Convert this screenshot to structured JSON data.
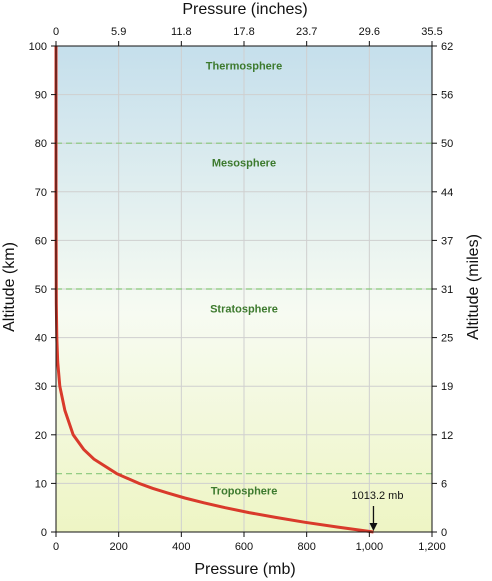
{
  "chart_data": {
    "type": "line",
    "xlabel": "Pressure (mb)",
    "x2label": "Pressure (inches)",
    "ylabel": "Altitude (km)",
    "y2label": "Altitude (miles)",
    "xlim": [
      0,
      1200
    ],
    "ylim": [
      0,
      100
    ],
    "x_ticks": [
      "0",
      "200",
      "400",
      "600",
      "800",
      "1,000",
      "1,200"
    ],
    "x2_ticks": [
      "0",
      "5.9",
      "11.8",
      "17.8",
      "23.7",
      "29.6",
      "35.5"
    ],
    "y_ticks": [
      "0",
      "10",
      "20",
      "30",
      "40",
      "50",
      "60",
      "70",
      "80",
      "90",
      "100"
    ],
    "y2_ticks": [
      "0",
      "6",
      "12",
      "19",
      "25",
      "31",
      "37",
      "44",
      "50",
      "56",
      "62"
    ],
    "grid": true,
    "layers": [
      {
        "name": "Troposphere",
        "label_altitude": 8.5,
        "top": 12
      },
      {
        "name": "Stratosphere",
        "label_altitude": 46,
        "top": 50
      },
      {
        "name": "Mesosphere",
        "label_altitude": 76,
        "top": 80
      },
      {
        "name": "Thermosphere",
        "label_altitude": 96
      }
    ],
    "annotation": {
      "text": "1013.2 mb",
      "x": 1013.2,
      "y": 0
    },
    "series": [
      {
        "color": "#d93a2b",
        "x": [
          1013.2,
          900,
          795,
          701,
          616,
          540,
          472,
          411,
          357,
          308,
          265,
          194,
          121,
          88.5,
          55,
          28.5,
          12,
          5.5,
          2.5,
          1.1,
          0.5,
          0.05,
          0.01,
          0.001
        ],
        "y": [
          0,
          1,
          2,
          3,
          4,
          5,
          6,
          7,
          8,
          9,
          10,
          12,
          15,
          17,
          20,
          25,
          30,
          35,
          40,
          47,
          52,
          70,
          80,
          100
        ]
      }
    ]
  }
}
